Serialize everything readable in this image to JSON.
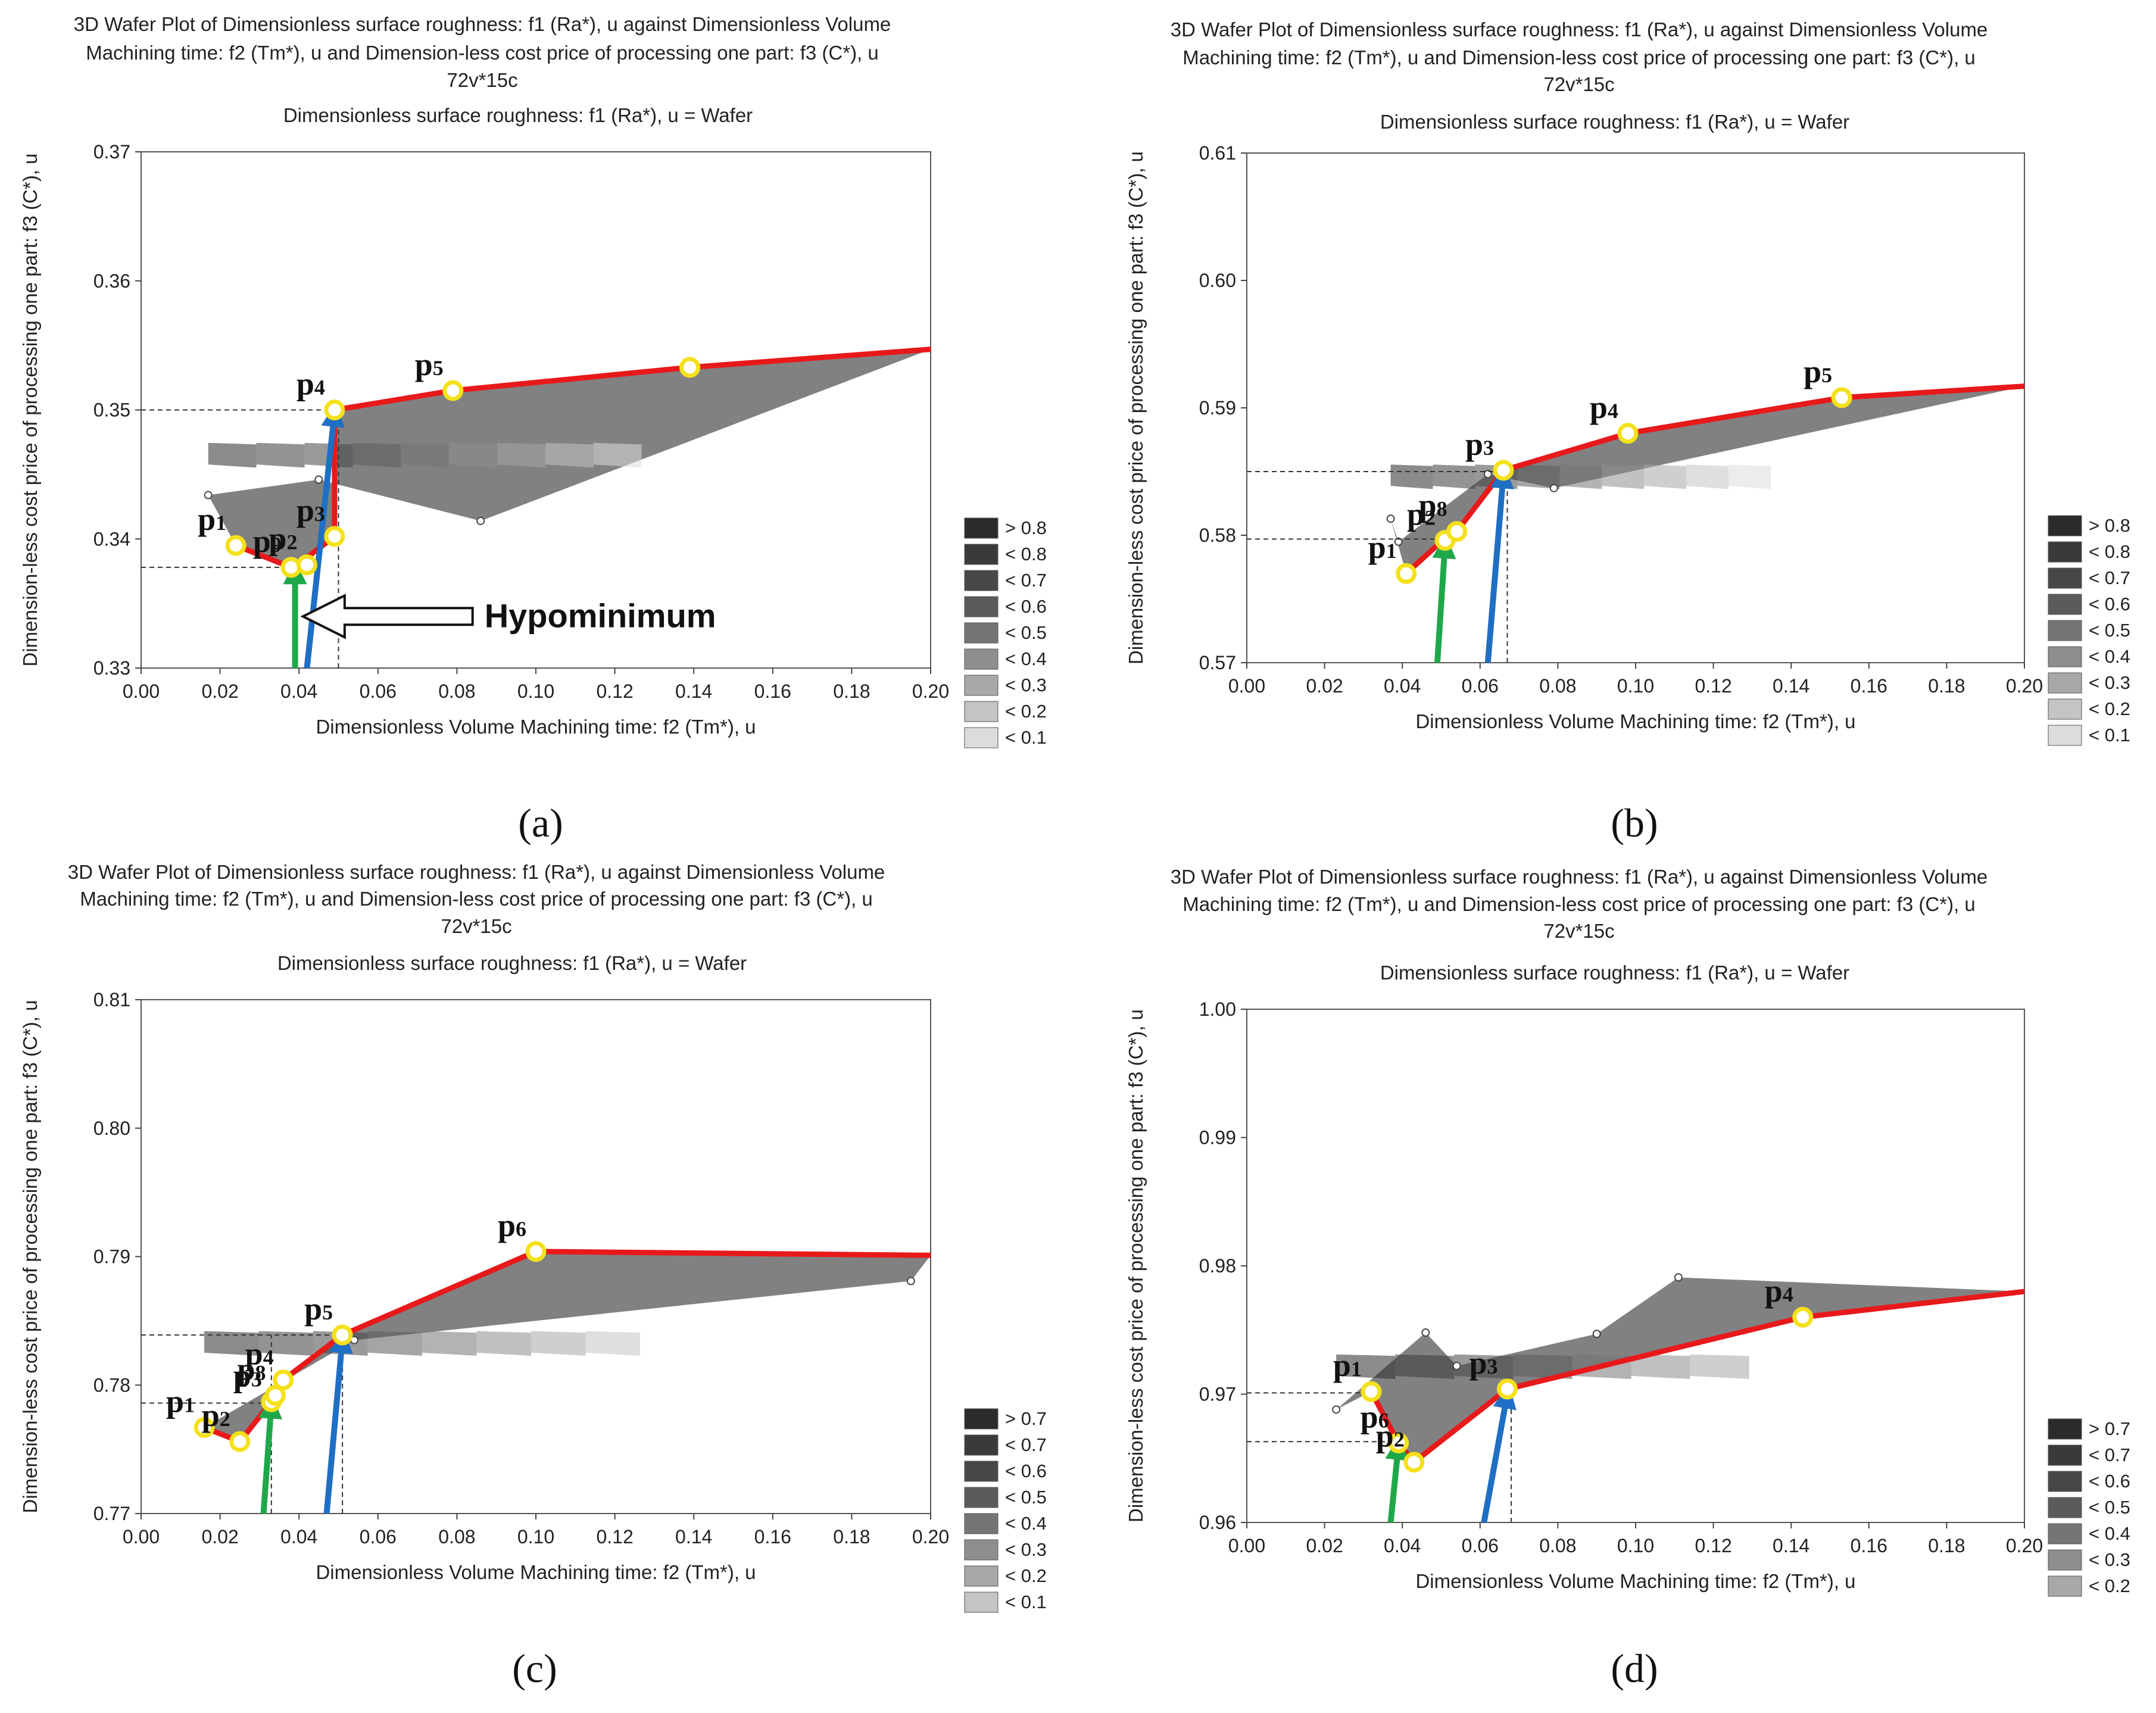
{
  "chart_data": [
    {
      "panel": "(a)",
      "type": "contour",
      "title_lines": [
        "3D Wafer Plot of Dimensionless surface roughness: f1 (Ra*), u against Dimensionless Volume",
        "Machining time:  f2 (Tm*), u and Dimension-less cost price of processing one part: f3 (C*), u",
        "72v*15c"
      ],
      "subtitle": "Dimensionless surface roughness: f1 (Ra*), u = Wafer",
      "xlabel": "Dimensionless Volume Machining time:  f2 (Tm*), u",
      "ylabel": "Dimension-less cost price of processing one part: f3 (C*), u",
      "xlim": [
        0.0,
        0.2
      ],
      "ylim": [
        0.33,
        0.37
      ],
      "xticks": [
        "0.00",
        "0.02",
        "0.04",
        "0.06",
        "0.08",
        "0.10",
        "0.12",
        "0.14",
        "0.16",
        "0.18",
        "0.20"
      ],
      "yticks": [
        "0.33",
        "0.34",
        "0.35",
        "0.36",
        "0.37"
      ],
      "legend": [
        "> 0.8",
        "< 0.8",
        "< 0.7",
        "< 0.6",
        "< 0.5",
        "< 0.4",
        "< 0.3",
        "< 0.2",
        "< 0.1"
      ],
      "pareto_front": [
        [
          0.024,
          0.3395
        ],
        [
          0.038,
          0.3378
        ],
        [
          0.04,
          0.3381
        ],
        [
          0.049,
          0.3402
        ],
        [
          0.049,
          0.35
        ],
        [
          0.079,
          0.3515
        ],
        [
          0.139,
          0.3533
        ],
        [
          0.2,
          0.3547
        ]
      ],
      "points": [
        {
          "name": "p1",
          "x": 0.024,
          "y": 0.3395
        },
        {
          "name": "p9",
          "x": 0.038,
          "y": 0.3378
        },
        {
          "name": "p2",
          "x": 0.042,
          "y": 0.338
        },
        {
          "name": "p3",
          "x": 0.049,
          "y": 0.3402
        },
        {
          "name": "p4",
          "x": 0.049,
          "y": 0.35
        },
        {
          "name": "p5",
          "x": 0.079,
          "y": 0.3515
        },
        {
          "name": "",
          "x": 0.139,
          "y": 0.3533
        }
      ],
      "vertices": [
        [
          0.017,
          0.3434
        ],
        [
          0.045,
          0.3446
        ],
        [
          0.086,
          0.3414
        ]
      ],
      "dashed_y": [
        0.35,
        0.3378
      ],
      "dashed_x": [
        0.05
      ],
      "green_arrow": {
        "from": [
          0.039,
          0.33
        ],
        "to": [
          0.039,
          0.3376
        ]
      },
      "blue_arrow": {
        "from": [
          0.042,
          0.33
        ],
        "to": [
          0.049,
          0.3498
        ]
      },
      "annotation": "Hypominimum",
      "annotation_at": [
        0.09,
        0.334
      ],
      "annotation_arrow_to": [
        0.041,
        0.334
      ]
    },
    {
      "panel": "(b)",
      "type": "contour",
      "title_lines": [
        "3D Wafer Plot of Dimensionless surface roughness: f1 (Ra*), u against Dimensionless Volume",
        "Machining time:  f2 (Tm*), u and Dimension-less cost price of processing one part: f3 (C*), u",
        "72v*15c"
      ],
      "subtitle": "Dimensionless surface roughness: f1 (Ra*), u = Wafer",
      "xlabel": "Dimensionless Volume Machining time:  f2 (Tm*), u",
      "ylabel": "Dimension-less cost price of processing one part: f3 (C*), u",
      "xlim": [
        0.0,
        0.2
      ],
      "ylim": [
        0.57,
        0.61
      ],
      "xticks": [
        "0.00",
        "0.02",
        "0.04",
        "0.06",
        "0.08",
        "0.10",
        "0.12",
        "0.14",
        "0.16",
        "0.18",
        "0.20"
      ],
      "yticks": [
        "0.57",
        "0.58",
        "0.59",
        "0.60",
        "0.61"
      ],
      "legend": [
        "> 0.8",
        "< 0.8",
        "< 0.7",
        "< 0.6",
        "< 0.5",
        "< 0.4",
        "< 0.3",
        "< 0.2",
        "< 0.1"
      ],
      "pareto_front": [
        [
          0.041,
          0.577
        ],
        [
          0.05,
          0.5795
        ],
        [
          0.054,
          0.5803
        ],
        [
          0.066,
          0.5851
        ],
        [
          0.098,
          0.588
        ],
        [
          0.153,
          0.5908
        ],
        [
          0.2,
          0.5917
        ]
      ],
      "points": [
        {
          "name": "p1",
          "x": 0.041,
          "y": 0.577
        },
        {
          "name": "p2",
          "x": 0.051,
          "y": 0.5796
        },
        {
          "name": "p8",
          "x": 0.054,
          "y": 0.5803
        },
        {
          "name": "p3",
          "x": 0.066,
          "y": 0.5851
        },
        {
          "name": "p4",
          "x": 0.098,
          "y": 0.588
        },
        {
          "name": "p5",
          "x": 0.153,
          "y": 0.5908
        }
      ],
      "vertices": [
        [
          0.037,
          0.5813
        ],
        [
          0.039,
          0.5795
        ],
        [
          0.062,
          0.5848
        ],
        [
          0.079,
          0.5837
        ]
      ],
      "dashed_y": [
        0.585,
        0.5797
      ],
      "dashed_x": [
        0.067
      ],
      "green_arrow": {
        "from": [
          0.049,
          0.57
        ],
        "to": [
          0.051,
          0.5793
        ]
      },
      "blue_arrow": {
        "from": [
          0.062,
          0.57
        ],
        "to": [
          0.066,
          0.5848
        ]
      }
    },
    {
      "panel": "(c)",
      "type": "contour",
      "title_lines": [
        "3D Wafer Plot of Dimensionless surface roughness: f1 (Ra*), u against Dimensionless Volume",
        "Machining time:  f2 (Tm*), u and Dimension-less cost price of processing one part: f3 (C*), u",
        "72v*15c"
      ],
      "subtitle": "Dimensionless surface roughness: f1 (Ra*), u = Wafer",
      "xlabel": "Dimensionless Volume Machining time:  f2 (Tm*), u",
      "ylabel": "Dimension-less cost price of processing one part: f3 (C*), u",
      "xlim": [
        0.0,
        0.2
      ],
      "ylim": [
        0.77,
        0.81
      ],
      "xticks": [
        "0.00",
        "0.02",
        "0.04",
        "0.06",
        "0.08",
        "0.10",
        "0.12",
        "0.14",
        "0.16",
        "0.18",
        "0.20"
      ],
      "yticks": [
        "0.77",
        "0.78",
        "0.79",
        "0.80",
        "0.81"
      ],
      "legend": [
        "> 0.7",
        "< 0.7",
        "< 0.6",
        "< 0.5",
        "< 0.4",
        "< 0.3",
        "< 0.2",
        "< 0.1"
      ],
      "pareto_front": [
        [
          0.016,
          0.7767
        ],
        [
          0.025,
          0.7756
        ],
        [
          0.033,
          0.7787
        ],
        [
          0.036,
          0.7804
        ],
        [
          0.051,
          0.7839
        ],
        [
          0.1,
          0.7904
        ],
        [
          0.2,
          0.7901
        ]
      ],
      "points": [
        {
          "name": "p1",
          "x": 0.016,
          "y": 0.7767
        },
        {
          "name": "p2",
          "x": 0.025,
          "y": 0.7756
        },
        {
          "name": "p3",
          "x": 0.033,
          "y": 0.7787
        },
        {
          "name": "p8",
          "x": 0.034,
          "y": 0.7792
        },
        {
          "name": "p4",
          "x": 0.036,
          "y": 0.7804
        },
        {
          "name": "p5",
          "x": 0.051,
          "y": 0.7839
        },
        {
          "name": "p6",
          "x": 0.1,
          "y": 0.7904
        }
      ],
      "vertices": [
        [
          0.054,
          0.7835
        ],
        [
          0.195,
          0.7881
        ]
      ],
      "dashed_y": [
        0.7839,
        0.7786
      ],
      "dashed_x": [
        0.033,
        0.051
      ],
      "green_arrow": {
        "from": [
          0.031,
          0.77
        ],
        "to": [
          0.033,
          0.7785
        ]
      },
      "blue_arrow": {
        "from": [
          0.047,
          0.77
        ],
        "to": [
          0.051,
          0.7836
        ]
      }
    },
    {
      "panel": "(d)",
      "type": "contour",
      "title_lines": [
        "3D Wafer Plot of Dimensionless surface roughness: f1 (Ra*), u against Dimensionless Volume",
        "Machining time:  f2 (Tm*), u and Dimension-less cost price of processing one part: f3 (C*), u",
        "72v*15c"
      ],
      "subtitle": "Dimensionless surface roughness: f1 (Ra*), u = Wafer",
      "xlabel": "Dimensionless Volume Machining time:  f2 (Tm*), u",
      "ylabel": "Dimension-less cost price of processing one part: f3 (C*), u",
      "xlim": [
        0.0,
        0.2
      ],
      "ylim": [
        0.96,
        1.0
      ],
      "xticks": [
        "0.00",
        "0.02",
        "0.04",
        "0.06",
        "0.08",
        "0.10",
        "0.12",
        "0.14",
        "0.16",
        "0.18",
        "0.20"
      ],
      "yticks": [
        "0.96",
        "0.97",
        "0.98",
        "0.99",
        "1.00"
      ],
      "legend": [
        "> 0.7",
        "< 0.7",
        "< 0.6",
        "< 0.5",
        "< 0.4",
        "< 0.3",
        "< 0.2"
      ],
      "pareto_front": [
        [
          0.032,
          0.9702
        ],
        [
          0.039,
          0.9662
        ],
        [
          0.043,
          0.9647
        ],
        [
          0.067,
          0.9704
        ],
        [
          0.143,
          0.976
        ],
        [
          0.2,
          0.978
        ]
      ],
      "points": [
        {
          "name": "p1",
          "x": 0.032,
          "y": 0.9702
        },
        {
          "name": "p6",
          "x": 0.039,
          "y": 0.9662
        },
        {
          "name": "p2",
          "x": 0.043,
          "y": 0.9647
        },
        {
          "name": "p3",
          "x": 0.067,
          "y": 0.9704
        },
        {
          "name": "p4",
          "x": 0.143,
          "y": 0.976
        }
      ],
      "vertices": [
        [
          0.023,
          0.9688
        ],
        [
          0.046,
          0.9748
        ],
        [
          0.054,
          0.9722
        ],
        [
          0.09,
          0.9747
        ],
        [
          0.111,
          0.9791
        ]
      ],
      "dashed_y": [
        0.9701,
        0.9663
      ],
      "dashed_x": [
        0.068
      ],
      "green_arrow": {
        "from": [
          0.037,
          0.96
        ],
        "to": [
          0.039,
          0.966
        ]
      },
      "blue_arrow": {
        "from": [
          0.061,
          0.96
        ],
        "to": [
          0.067,
          0.97
        ]
      }
    }
  ],
  "panel_labels": [
    "(a)",
    "(b)",
    "(c)",
    "(d)"
  ]
}
